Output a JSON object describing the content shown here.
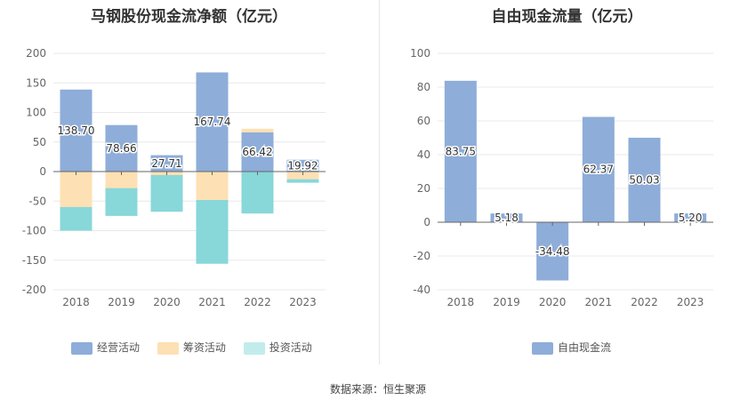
{
  "source_label": "数据来源：恒生聚源",
  "colors": {
    "operating": "#8eadd9",
    "financing": "#fde0b3",
    "investing": "#88d7d9",
    "free_cash_flow": "#8eadd9"
  },
  "chart_data": [
    {
      "type": "bar",
      "stacked": true,
      "title": "马钢股份现金流净额（亿元）",
      "categories": [
        "2018",
        "2019",
        "2020",
        "2021",
        "2022",
        "2023"
      ],
      "ylim": [
        -200,
        200
      ],
      "yticks": [
        -200,
        -150,
        -100,
        -50,
        0,
        50,
        100,
        150,
        200
      ],
      "grid": true,
      "legend_position": "bottom",
      "series": [
        {
          "name": "经营活动",
          "values": [
            138.7,
            78.66,
            27.71,
            167.74,
            66.42,
            19.92
          ],
          "show_labels": true
        },
        {
          "name": "筹资活动",
          "values": [
            -60,
            -28,
            -6,
            -48,
            6,
            -13
          ],
          "show_labels": false
        },
        {
          "name": "投资活动",
          "values": [
            -40,
            -47,
            -62,
            -108,
            -71,
            -6
          ],
          "show_labels": false
        }
      ]
    },
    {
      "type": "bar",
      "title": "自由现金流量（亿元）",
      "categories": [
        "2018",
        "2019",
        "2020",
        "2021",
        "2022",
        "2023"
      ],
      "ylim": [
        -40,
        100
      ],
      "yticks": [
        -40,
        -20,
        0,
        20,
        40,
        60,
        80,
        100
      ],
      "grid": true,
      "legend_position": "bottom",
      "series": [
        {
          "name": "自由现金流",
          "values": [
            83.75,
            5.18,
            -34.48,
            62.37,
            50.03,
            5.2
          ],
          "show_labels": true
        }
      ]
    }
  ]
}
